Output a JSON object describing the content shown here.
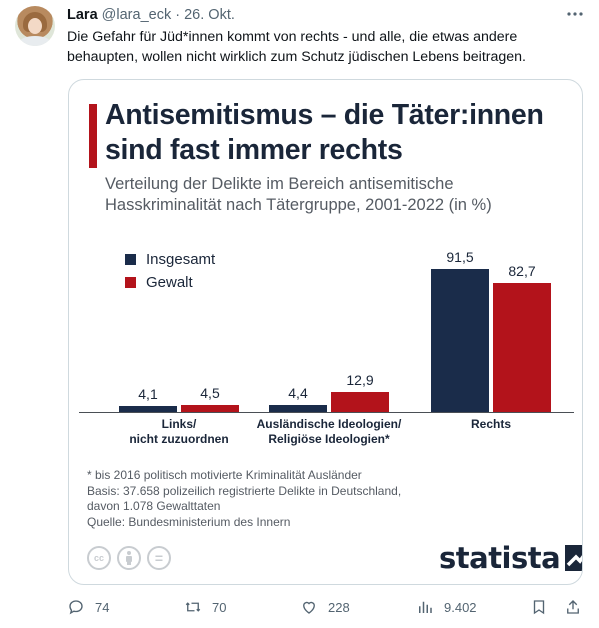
{
  "tweet": {
    "author_name": "Lara",
    "handle": "@lara_eck",
    "separator": "·",
    "date": "26. Okt.",
    "more_icon": "more-horizontal-icon",
    "text": "Die Gefahr für Jüd*innen kommt von rechts - und alle, die etwas andere behaupten, wollen nicht wirklich zum Schutz jüdischen Lebens beitragen."
  },
  "image": {
    "title": "Antisemitismus – die Täter:innen sind fast immer rechts",
    "subtitle": "Verteilung der Delikte im Bereich antisemitische Hasskriminalität nach Tätergruppe, 2001-2022 (in %)",
    "footnote_lines": [
      "* bis 2016 politisch motivierte Kriminalität Ausländer",
      "Basis: 37.658 polizeilich registrierte Delikte in Deutschland,",
      "davon 1.078 Gewalttaten",
      "Quelle: Bundesministerium des Innern"
    ],
    "license_icons": [
      "cc-icon",
      "attribution-icon",
      "equals-icon"
    ],
    "license_glyphs": [
      "cc",
      "",
      "="
    ],
    "logo_text": "statista"
  },
  "chart_data": {
    "type": "bar",
    "categories": [
      "Links/\nnicht zuzuordnen",
      "Ausländische Ideologien/\nReligiöse Ideologien*",
      "Rechts"
    ],
    "series": [
      {
        "name": "Insgesamt",
        "values": [
          4.1,
          4.4,
          91.5
        ],
        "labels": [
          "4,1",
          "4,4",
          "91,5"
        ],
        "color": "#1a2c4a"
      },
      {
        "name": "Gewalt",
        "values": [
          4.5,
          12.9,
          82.7
        ],
        "labels": [
          "4,5",
          "12,9",
          "82,7"
        ],
        "color": "#b3131b"
      }
    ],
    "ylim": [
      0,
      100
    ],
    "grid": false,
    "legend": "top-left"
  },
  "actions": {
    "reply": {
      "icon": "reply-icon",
      "count": "74"
    },
    "retweet": {
      "icon": "retweet-icon",
      "count": "70"
    },
    "like": {
      "icon": "heart-icon",
      "count": "228"
    },
    "views": {
      "icon": "views-icon",
      "count": "9.402"
    },
    "bookmark": {
      "icon": "bookmark-icon"
    },
    "share": {
      "icon": "share-icon"
    }
  },
  "colors": {
    "accent_red": "#b3131b",
    "navy": "#1a2c4a",
    "muted": "#536471"
  }
}
